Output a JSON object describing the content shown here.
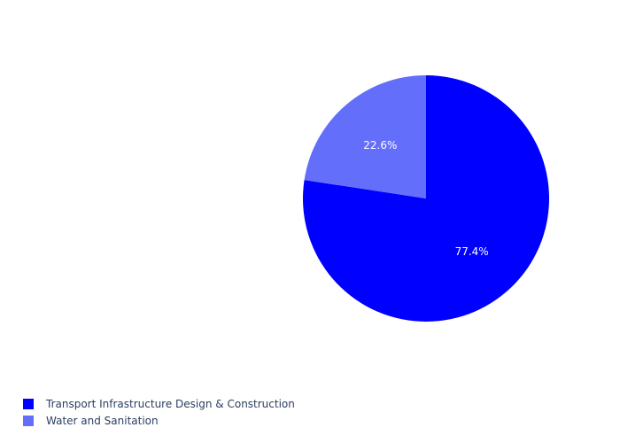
{
  "chart_data": {
    "type": "pie",
    "title": "",
    "categories": [
      "Transport Infrastructure Design & Construction",
      "Water and Sanitation"
    ],
    "values": [
      77.4,
      22.6
    ],
    "labels": [
      "77.4%",
      "22.6%"
    ],
    "colors": [
      "#0000ff",
      "#636efa"
    ],
    "label_color": "#ffffff",
    "legend": "bottom-left",
    "direction": "clockwise",
    "start": "top"
  }
}
